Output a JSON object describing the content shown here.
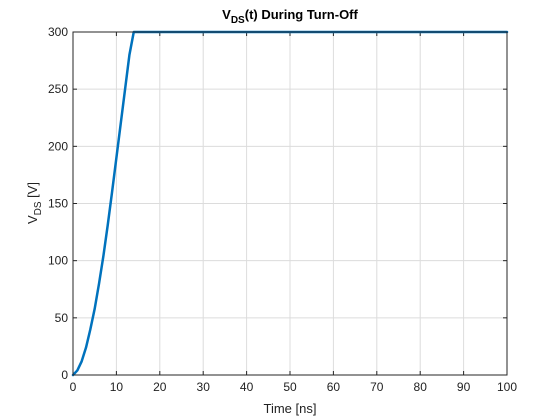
{
  "chart_data": {
    "type": "line",
    "title_main": "V",
    "title_sub": "DS",
    "title_rest": "(t) During Turn-Off",
    "xlabel": "Time [ns]",
    "ylabel_main": "V",
    "ylabel_sub": "DS",
    "ylabel_rest": " [V]",
    "xlim": [
      0,
      100
    ],
    "ylim": [
      0,
      300
    ],
    "xticks": [
      0,
      10,
      20,
      30,
      40,
      50,
      60,
      70,
      80,
      90,
      100
    ],
    "yticks": [
      0,
      50,
      100,
      150,
      200,
      250,
      300
    ],
    "grid": true,
    "series": [
      {
        "color": "#0072bd",
        "x": [
          0,
          1,
          2,
          3,
          4,
          5,
          6,
          7,
          8,
          9,
          10,
          11,
          12,
          13,
          14,
          20,
          30,
          40,
          50,
          60,
          70,
          80,
          90,
          100
        ],
        "y": [
          0,
          4,
          12,
          24,
          40,
          58,
          80,
          104,
          131,
          160,
          190,
          220,
          250,
          280,
          300,
          300,
          300,
          300,
          300,
          300,
          300,
          300,
          300,
          300
        ]
      }
    ]
  }
}
